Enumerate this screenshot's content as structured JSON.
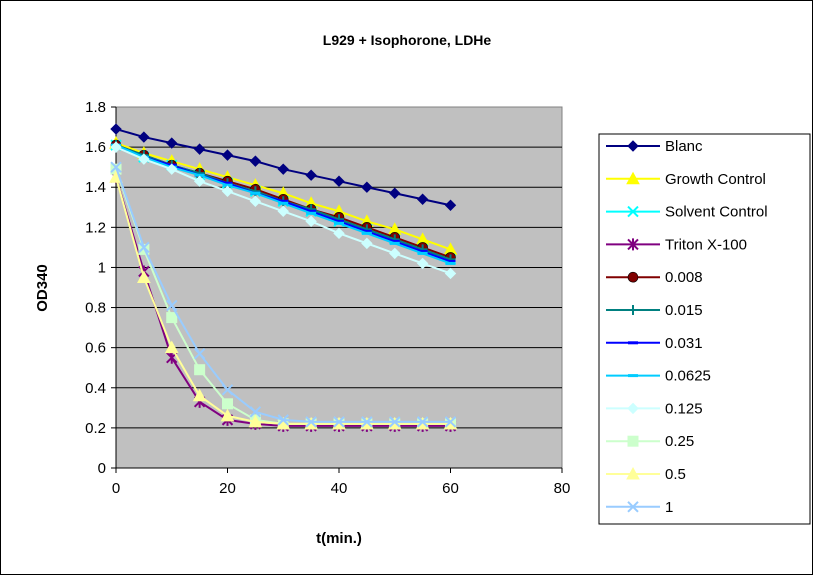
{
  "chart_data": {
    "type": "line",
    "title": "L929 + Isophorone, LDHe",
    "xlabel": "t(min.)",
    "ylabel": "OD340",
    "xlim": [
      0,
      80
    ],
    "ylim": [
      0,
      1.8
    ],
    "x_ticks": [
      "0",
      "20",
      "40",
      "60",
      "80"
    ],
    "y_ticks": [
      "0",
      "0.2",
      "0.4",
      "0.6",
      "0.8",
      "1",
      "1.2",
      "1.4",
      "1.6",
      "1.8"
    ],
    "grid": "horizontal",
    "legend_position": "right",
    "plot_background": "#c0c0c0",
    "x": [
      0,
      5,
      10,
      15,
      20,
      25,
      30,
      35,
      40,
      45,
      50,
      55,
      60
    ],
    "series": [
      {
        "name": "Blanc",
        "color": "#000080",
        "marker": "diamond",
        "values": [
          1.69,
          1.65,
          1.62,
          1.59,
          1.56,
          1.53,
          1.49,
          1.46,
          1.43,
          1.4,
          1.37,
          1.34,
          1.31
        ]
      },
      {
        "name": "Growth Control",
        "color": "#ffff00",
        "marker": "triangle",
        "values": [
          1.62,
          1.57,
          1.53,
          1.49,
          1.45,
          1.41,
          1.37,
          1.32,
          1.28,
          1.23,
          1.19,
          1.14,
          1.09
        ]
      },
      {
        "name": "Solvent Control",
        "color": "#00ffff",
        "marker": "x",
        "values": [
          1.61,
          1.55,
          1.51,
          1.46,
          1.42,
          1.38,
          1.33,
          1.28,
          1.23,
          1.19,
          1.14,
          1.09,
          1.04
        ]
      },
      {
        "name": "Triton X-100",
        "color": "#800080",
        "marker": "star",
        "values": [
          1.45,
          0.98,
          0.55,
          0.33,
          0.24,
          0.22,
          0.21,
          0.21,
          0.21,
          0.21,
          0.21,
          0.21,
          0.21
        ]
      },
      {
        "name": "0.008",
        "color": "#800000",
        "marker": "circle",
        "values": [
          1.61,
          1.56,
          1.51,
          1.47,
          1.43,
          1.39,
          1.34,
          1.29,
          1.25,
          1.2,
          1.15,
          1.1,
          1.05
        ]
      },
      {
        "name": "0.015",
        "color": "#008080",
        "marker": "plus",
        "values": [
          1.61,
          1.56,
          1.51,
          1.47,
          1.42,
          1.38,
          1.33,
          1.29,
          1.24,
          1.19,
          1.14,
          1.09,
          1.04
        ]
      },
      {
        "name": "0.031",
        "color": "#0000ff",
        "marker": "dash",
        "values": [
          1.61,
          1.55,
          1.51,
          1.46,
          1.42,
          1.37,
          1.33,
          1.28,
          1.23,
          1.18,
          1.13,
          1.08,
          1.03
        ]
      },
      {
        "name": "0.0625",
        "color": "#00ccff",
        "marker": "dash",
        "values": [
          1.61,
          1.55,
          1.5,
          1.46,
          1.41,
          1.37,
          1.32,
          1.27,
          1.22,
          1.17,
          1.12,
          1.07,
          1.02
        ]
      },
      {
        "name": "0.125",
        "color": "#ccffff",
        "marker": "diamond",
        "values": [
          1.6,
          1.54,
          1.49,
          1.43,
          1.38,
          1.33,
          1.28,
          1.23,
          1.17,
          1.12,
          1.07,
          1.02,
          0.97
        ]
      },
      {
        "name": "0.25",
        "color": "#ccffcc",
        "marker": "square",
        "values": [
          1.49,
          1.09,
          0.75,
          0.49,
          0.32,
          0.24,
          0.22,
          0.22,
          0.22,
          0.22,
          0.22,
          0.22,
          0.22
        ]
      },
      {
        "name": "0.5",
        "color": "#ffff99",
        "marker": "triangle",
        "values": [
          1.45,
          0.95,
          0.6,
          0.36,
          0.26,
          0.23,
          0.22,
          0.22,
          0.22,
          0.22,
          0.22,
          0.22,
          0.22
        ]
      },
      {
        "name": "1",
        "color": "#99ccff",
        "marker": "x",
        "values": [
          1.5,
          1.1,
          0.81,
          0.57,
          0.39,
          0.28,
          0.24,
          0.23,
          0.23,
          0.23,
          0.23,
          0.23,
          0.23
        ]
      }
    ]
  }
}
